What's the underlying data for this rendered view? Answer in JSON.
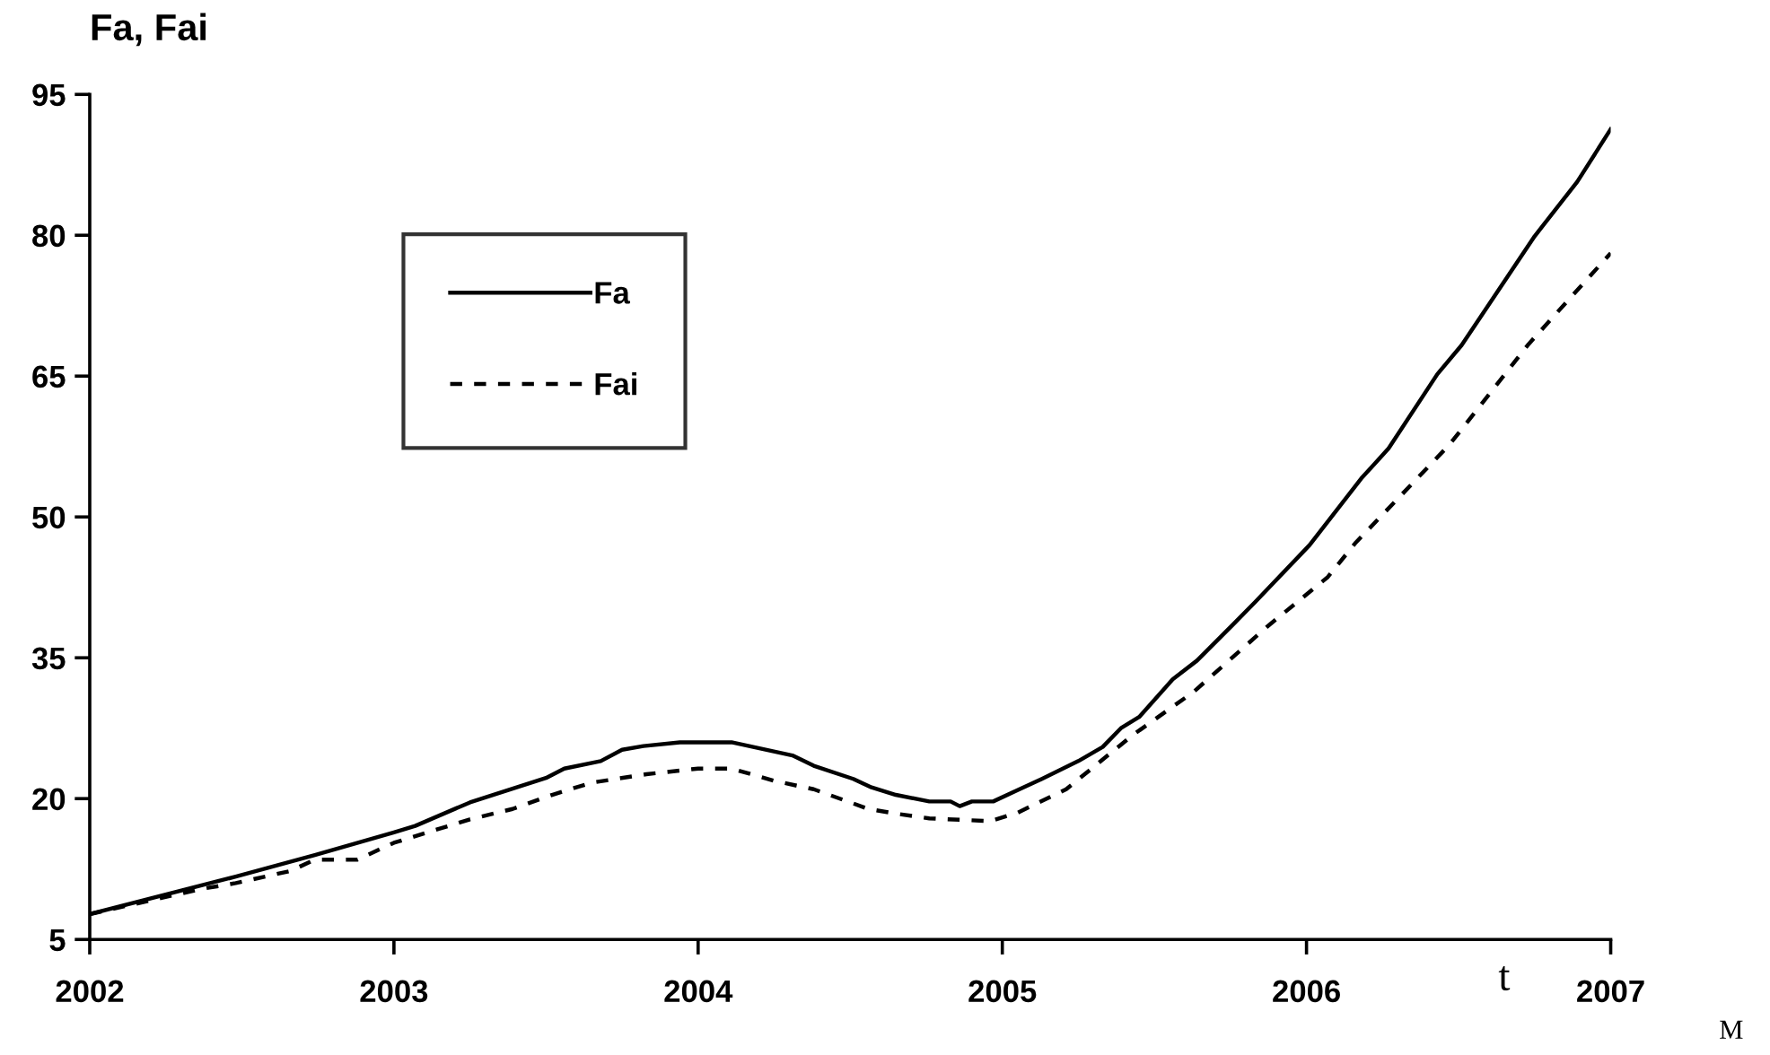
{
  "chart_data": {
    "type": "line",
    "ylabel": "Fa, Fai",
    "xlabel": "t",
    "annotations": [
      "M"
    ],
    "xlim": [
      2002,
      2007
    ],
    "xticks": [
      2002,
      2003,
      2004,
      2005,
      2006,
      2007
    ],
    "ylim": [
      5,
      95
    ],
    "yticks": [
      5,
      20,
      35,
      50,
      65,
      80,
      95
    ],
    "grid": false,
    "legend": "top left",
    "marker": "none",
    "series": [
      {
        "name": "Fa",
        "color": "#000000",
        "line_style": "solid",
        "x": [
          2002.0,
          2002.48,
          2002.74,
          2003.0,
          2003.07,
          2003.25,
          2003.5,
          2003.56,
          2003.68,
          2003.75,
          2003.82,
          2003.94,
          2004.11,
          2004.31,
          2004.38,
          2004.51,
          2004.57,
          2004.65,
          2004.76,
          2004.83,
          2004.86,
          2004.9,
          2004.97,
          2005.05,
          2005.13,
          2005.25,
          2005.33,
          2005.39,
          2005.45,
          2005.56,
          2005.64,
          2005.76,
          2005.83,
          2006.01,
          2006.18,
          2006.27,
          2006.43,
          2006.51,
          2006.75,
          2006.89,
          2007.0
        ],
        "values": [
          7.7,
          11.7,
          14.0,
          16.4,
          17.1,
          19.6,
          22.2,
          23.2,
          24.0,
          25.2,
          25.6,
          26.0,
          26.0,
          24.6,
          23.5,
          22.1,
          21.2,
          20.4,
          19.7,
          19.7,
          19.2,
          19.7,
          19.7,
          20.9,
          22.1,
          24.0,
          25.5,
          27.5,
          28.7,
          32.7,
          34.7,
          38.6,
          40.9,
          47.0,
          54.1,
          57.3,
          65.2,
          68.3,
          79.9,
          85.7,
          91.3
        ]
      },
      {
        "name": "Fai",
        "color": "#000000",
        "line_style": "dashed",
        "x": [
          2002.0,
          2002.37,
          2002.48,
          2002.66,
          2002.74,
          2002.88,
          2003.0,
          2003.11,
          2003.25,
          2003.39,
          2003.52,
          2003.65,
          2003.83,
          2004.0,
          2004.11,
          2004.25,
          2004.38,
          2004.56,
          2004.65,
          2004.76,
          2004.96,
          2005.05,
          2005.21,
          2005.43,
          2005.63,
          2005.87,
          2006.07,
          2006.16,
          2006.47,
          2006.73,
          2007.0
        ],
        "values": [
          7.7,
          10.4,
          11.0,
          12.3,
          13.5,
          13.5,
          15.3,
          16.4,
          17.8,
          18.9,
          20.4,
          21.7,
          22.6,
          23.2,
          23.2,
          21.9,
          21.0,
          18.9,
          18.4,
          17.9,
          17.6,
          18.5,
          21.0,
          26.8,
          31.4,
          38.3,
          43.6,
          47.2,
          57.7,
          68.4,
          78.1
        ]
      }
    ]
  }
}
